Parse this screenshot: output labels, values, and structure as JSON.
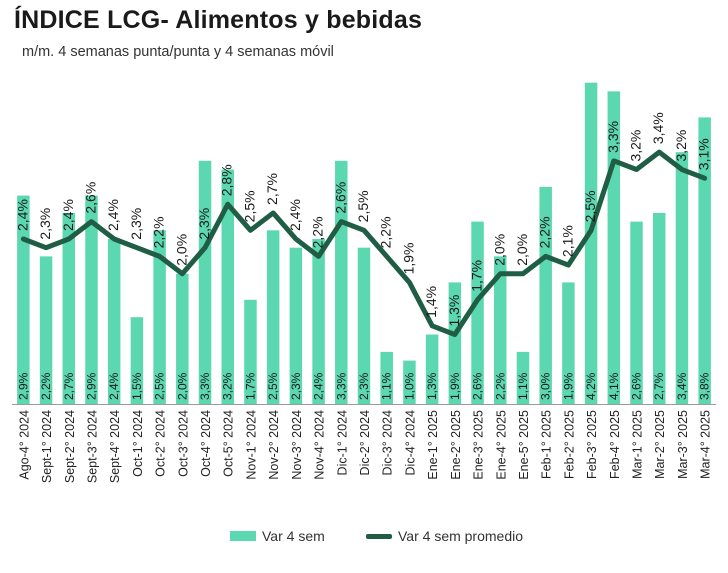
{
  "header": {
    "title": "ÍNDICE LCG- Alimentos y bebidas",
    "subtitle": "m/m. 4 semanas punta/punta y 4 semanas móvil"
  },
  "colors": {
    "bar": "#5cd8b0",
    "line": "#1f5e45",
    "axis": "#9a9a9a",
    "text": "#222222"
  },
  "chart_data": {
    "type": "bar",
    "title": "ÍNDICE LCG- Alimentos y bebidas",
    "subtitle": "m/m. 4 semanas punta/punta y 4 semanas móvil",
    "categories": [
      "Ago-4° 2024",
      "Sept-1° 2024",
      "Sept-2° 2024",
      "Sept-3° 2024",
      "Sept-4° 2024",
      "Oct-1° 2024",
      "Oct-2° 2024",
      "Oct-3° 2024",
      "Oct-4° 2024",
      "Oct-5° 2024",
      "Nov-1° 2024",
      "Nov-2° 2024",
      "Nov-3° 2024",
      "Nov-4° 2024",
      "Dic-1° 2024",
      "Dic-2° 2024",
      "Dic-3° 2024",
      "Dic-4° 2024",
      "Ene-1° 2025",
      "Ene-2° 2025",
      "Ene-3° 2025",
      "Ene-4° 2025",
      "Ene-5° 2025",
      "Feb-1° 2025",
      "Feb-2° 2025",
      "Feb-3° 2025",
      "Feb-4° 2025",
      "Mar-1° 2025",
      "Mar-2° 2025",
      "Mar-3° 2025",
      "Mar-4° 2025"
    ],
    "series": [
      {
        "name": "Var 4 sem",
        "kind": "bar",
        "values": [
          2.9,
          2.2,
          2.7,
          2.9,
          2.4,
          1.5,
          2.5,
          2.0,
          3.3,
          3.2,
          1.7,
          2.5,
          2.3,
          2.4,
          3.3,
          2.3,
          1.1,
          1.0,
          1.3,
          1.9,
          2.6,
          2.2,
          1.1,
          3.0,
          1.9,
          4.2,
          4.1,
          2.6,
          2.7,
          3.4,
          3.8
        ],
        "labels": [
          "2,9%",
          "2,2%",
          "2,7%",
          "2,9%",
          "2,4%",
          "1,5%",
          "2,5%",
          "2,0%",
          "3,3%",
          "3,2%",
          "1,7%",
          "2,5%",
          "2,3%",
          "2,4%",
          "3,3%",
          "2,3%",
          "1,1%",
          "1,0%",
          "1,3%",
          "1,9%",
          "2,6%",
          "2,2%",
          "1,1%",
          "3,0%",
          "1,9%",
          "4,2%",
          "4,1%",
          "2,6%",
          "2,7%",
          "3,4%",
          "3,8%"
        ]
      },
      {
        "name": "Var 4 sem promedio",
        "kind": "line",
        "values": [
          2.4,
          2.3,
          2.4,
          2.6,
          2.4,
          2.3,
          2.2,
          2.0,
          2.3,
          2.8,
          2.5,
          2.7,
          2.4,
          2.2,
          2.6,
          2.5,
          2.2,
          1.9,
          1.4,
          1.3,
          1.7,
          2.0,
          2.0,
          2.2,
          2.1,
          2.5,
          3.3,
          3.2,
          3.4,
          3.2,
          3.1
        ],
        "labels": [
          "2,4%",
          "2,3%",
          "2,4%",
          "2,6%",
          "2,4%",
          "2,3%",
          "2,2%",
          "2,0%",
          "2,3%",
          "2,8%",
          "2,5%",
          "2,7%",
          "2,4%",
          "2,2%",
          "2,6%",
          "2,5%",
          "2,2%",
          "1,9%",
          "1,4%",
          "1,3%",
          "1,7%",
          "2,0%",
          "2,0%",
          "2,2%",
          "2,1%",
          "2,5%",
          "3,3%",
          "3,2%",
          "3,4%",
          "3,2%",
          "3,1%"
        ]
      }
    ],
    "ylim": [
      0.5,
      4.3
    ],
    "grid": false,
    "legend": "bottom"
  }
}
